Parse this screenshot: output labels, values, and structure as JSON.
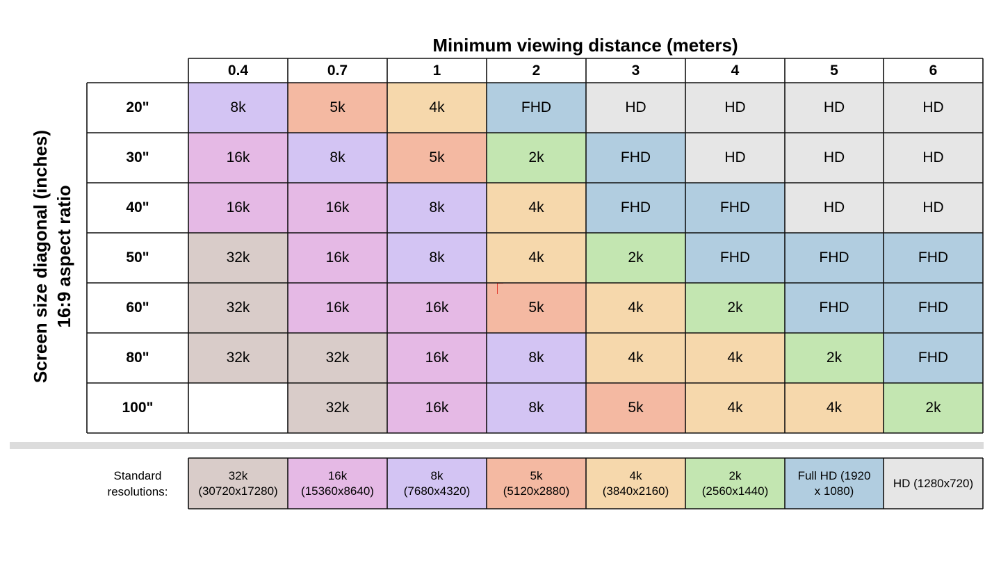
{
  "chart_data": {
    "type": "table",
    "title": "Minimum viewing distance (meters)",
    "ylabel_line1": "Screen size diagonal (inches)",
    "ylabel_line2": "16:9 aspect ratio",
    "columns": [
      "0.4",
      "0.7",
      "1",
      "2",
      "3",
      "4",
      "5",
      "6"
    ],
    "rows": [
      {
        "label": "20\"",
        "cells": [
          "8k",
          "5k",
          "4k",
          "FHD",
          "HD",
          "HD",
          "HD",
          "HD"
        ]
      },
      {
        "label": "30\"",
        "cells": [
          "16k",
          "8k",
          "5k",
          "2k",
          "FHD",
          "HD",
          "HD",
          "HD"
        ]
      },
      {
        "label": "40\"",
        "cells": [
          "16k",
          "16k",
          "8k",
          "4k",
          "FHD",
          "FHD",
          "HD",
          "HD"
        ]
      },
      {
        "label": "50\"",
        "cells": [
          "32k",
          "16k",
          "8k",
          "4k",
          "2k",
          "FHD",
          "FHD",
          "FHD"
        ]
      },
      {
        "label": "60\"",
        "cells": [
          "32k",
          "16k",
          "16k",
          "5k",
          "4k",
          "2k",
          "FHD",
          "FHD"
        ]
      },
      {
        "label": "80\"",
        "cells": [
          "32k",
          "32k",
          "16k",
          "8k",
          "4k",
          "4k",
          "2k",
          "FHD"
        ]
      },
      {
        "label": "100\"",
        "cells": [
          "",
          "32k",
          "16k",
          "8k",
          "5k",
          "4k",
          "4k",
          "2k"
        ]
      }
    ],
    "colors": {
      "32k": "#d9ccc9",
      "16k": "#e5b9e5",
      "8k": "#d3c4f3",
      "5k": "#f4b9a2",
      "4k": "#f6d8ac",
      "2k": "#c3e6b1",
      "FHD": "#b1cde0",
      "HD": "#e6e6e6"
    },
    "legend": {
      "title": "Standard resolutions:",
      "items": [
        {
          "key": "32k",
          "label": "32k\n(30720x17280)"
        },
        {
          "key": "16k",
          "label": "16k\n(15360x8640)"
        },
        {
          "key": "8k",
          "label": "8k\n(7680x4320)"
        },
        {
          "key": "5k",
          "label": "5k\n(5120x2880)"
        },
        {
          "key": "4k",
          "label": "4k\n(3840x2160)"
        },
        {
          "key": "2k",
          "label": "2k\n(2560x1440)"
        },
        {
          "key": "FHD",
          "label": "Full HD (1920\nx 1080)"
        },
        {
          "key": "HD",
          "label": "HD (1280x720)"
        }
      ]
    }
  }
}
